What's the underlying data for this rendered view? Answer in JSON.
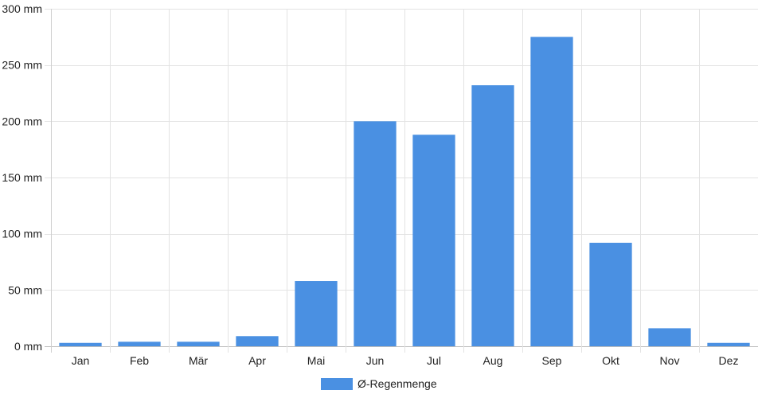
{
  "chart_data": {
    "type": "bar",
    "categories": [
      "Jan",
      "Feb",
      "Mär",
      "Apr",
      "Mai",
      "Jun",
      "Jul",
      "Aug",
      "Sep",
      "Okt",
      "Nov",
      "Dez"
    ],
    "series": [
      {
        "name": "Ø-Regenmenge",
        "values": [
          3,
          4,
          4,
          9,
          58,
          200,
          188,
          232,
          275,
          92,
          16,
          3
        ],
        "color": "#4a90e2"
      }
    ],
    "ylim": [
      0,
      300
    ],
    "yticks": [
      0,
      50,
      100,
      150,
      200,
      250,
      300
    ],
    "ytick_labels": [
      "0 mm",
      "50 mm",
      "100 mm",
      "150 mm",
      "200 mm",
      "250 mm",
      "300 mm"
    ],
    "grid": true,
    "legend_position": "bottom"
  }
}
